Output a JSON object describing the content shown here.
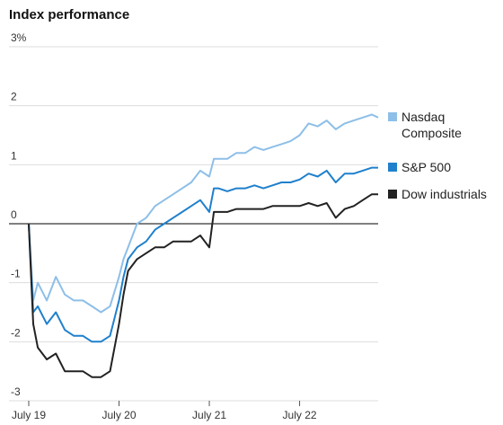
{
  "chart_data": {
    "type": "line",
    "title": "Index performance",
    "x": [
      0,
      0.05,
      0.1,
      0.2,
      0.3,
      0.4,
      0.5,
      0.6,
      0.7,
      0.8,
      0.9,
      1.0,
      1.05,
      1.1,
      1.2,
      1.3,
      1.4,
      1.5,
      1.6,
      1.7,
      1.8,
      1.9,
      2.0,
      2.05,
      2.1,
      2.2,
      2.3,
      2.4,
      2.5,
      2.6,
      2.7,
      2.8,
      2.9,
      3.0,
      3.1,
      3.2,
      3.3,
      3.4,
      3.5,
      3.6,
      3.7,
      3.8,
      3.87
    ],
    "xlim": [
      0,
      3.87
    ],
    "xticks": [
      {
        "value": 0,
        "label": "July 19"
      },
      {
        "value": 1,
        "label": "July 20"
      },
      {
        "value": 2,
        "label": "July 21"
      },
      {
        "value": 3,
        "label": "July 22"
      }
    ],
    "ylim": [
      -3,
      3
    ],
    "yticks": [
      -3,
      -2,
      -1,
      0,
      1,
      2,
      {
        "value": 3,
        "label": "3%"
      }
    ],
    "grid": true,
    "legend": "right",
    "series": [
      {
        "name": "Nasdaq Composite",
        "color": "#8dbfe8",
        "values": [
          0,
          -1.3,
          -1.0,
          -1.3,
          -0.9,
          -1.2,
          -1.3,
          -1.3,
          -1.4,
          -1.5,
          -1.4,
          -0.9,
          -0.6,
          -0.4,
          0,
          0.1,
          0.3,
          0.4,
          0.5,
          0.6,
          0.7,
          0.9,
          0.8,
          1.1,
          1.1,
          1.1,
          1.2,
          1.2,
          1.3,
          1.25,
          1.3,
          1.35,
          1.4,
          1.5,
          1.7,
          1.65,
          1.75,
          1.6,
          1.7,
          1.75,
          1.8,
          1.85,
          1.8
        ]
      },
      {
        "name": "S&P 500",
        "color": "#1f80cc",
        "values": [
          0,
          -1.5,
          -1.4,
          -1.7,
          -1.5,
          -1.8,
          -1.9,
          -1.9,
          -2.0,
          -2.0,
          -1.9,
          -1.3,
          -0.9,
          -0.6,
          -0.4,
          -0.3,
          -0.1,
          0,
          0.1,
          0.2,
          0.3,
          0.4,
          0.2,
          0.6,
          0.6,
          0.55,
          0.6,
          0.6,
          0.65,
          0.6,
          0.65,
          0.7,
          0.7,
          0.75,
          0.85,
          0.8,
          0.9,
          0.7,
          0.85,
          0.85,
          0.9,
          0.95,
          0.95
        ]
      },
      {
        "name": "Dow industrials",
        "color": "#222222",
        "values": [
          0,
          -1.7,
          -2.1,
          -2.3,
          -2.2,
          -2.5,
          -2.5,
          -2.5,
          -2.6,
          -2.6,
          -2.5,
          -1.7,
          -1.2,
          -0.8,
          -0.6,
          -0.5,
          -0.4,
          -0.4,
          -0.3,
          -0.3,
          -0.3,
          -0.2,
          -0.4,
          0.2,
          0.2,
          0.2,
          0.25,
          0.25,
          0.25,
          0.25,
          0.3,
          0.3,
          0.3,
          0.3,
          0.35,
          0.3,
          0.35,
          0.1,
          0.25,
          0.3,
          0.4,
          0.5,
          0.5
        ]
      }
    ]
  }
}
